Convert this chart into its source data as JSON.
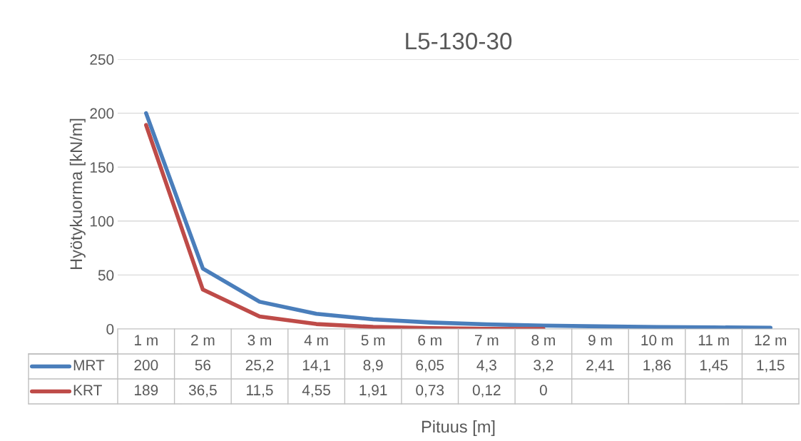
{
  "chart_data": {
    "type": "line",
    "title": "L5-130-30",
    "xlabel": "Pituus [m]",
    "ylabel": "Hyötykuorma [kN/m]",
    "categories": [
      "1 m",
      "2 m",
      "3 m",
      "4 m",
      "5 m",
      "6 m",
      "7 m",
      "8 m",
      "9 m",
      "10 m",
      "11 m",
      "12 m"
    ],
    "series": [
      {
        "name": "MRT",
        "color": "#4a7ebb",
        "values": [
          200,
          56,
          25.2,
          14.1,
          8.9,
          6.05,
          4.3,
          3.2,
          2.41,
          1.86,
          1.45,
          1.15
        ],
        "value_labels": [
          "200",
          "56",
          "25,2",
          "14,1",
          "8,9",
          "6,05",
          "4,3",
          "3,2",
          "2,41",
          "1,86",
          "1,45",
          "1,15"
        ]
      },
      {
        "name": "KRT",
        "color": "#be4b48",
        "values": [
          189,
          36.5,
          11.5,
          4.55,
          1.91,
          0.73,
          0.12,
          0,
          null,
          null,
          null,
          null
        ],
        "value_labels": [
          "189",
          "36,5",
          "11,5",
          "4,55",
          "1,91",
          "0,73",
          "0,12",
          "0",
          null,
          null,
          null,
          null
        ]
      }
    ],
    "ylim": [
      0,
      250
    ],
    "yticks": [
      0,
      50,
      100,
      150,
      200,
      250
    ],
    "grid": "y",
    "legend": "bottom",
    "line_style": "solid",
    "marker": "none"
  }
}
